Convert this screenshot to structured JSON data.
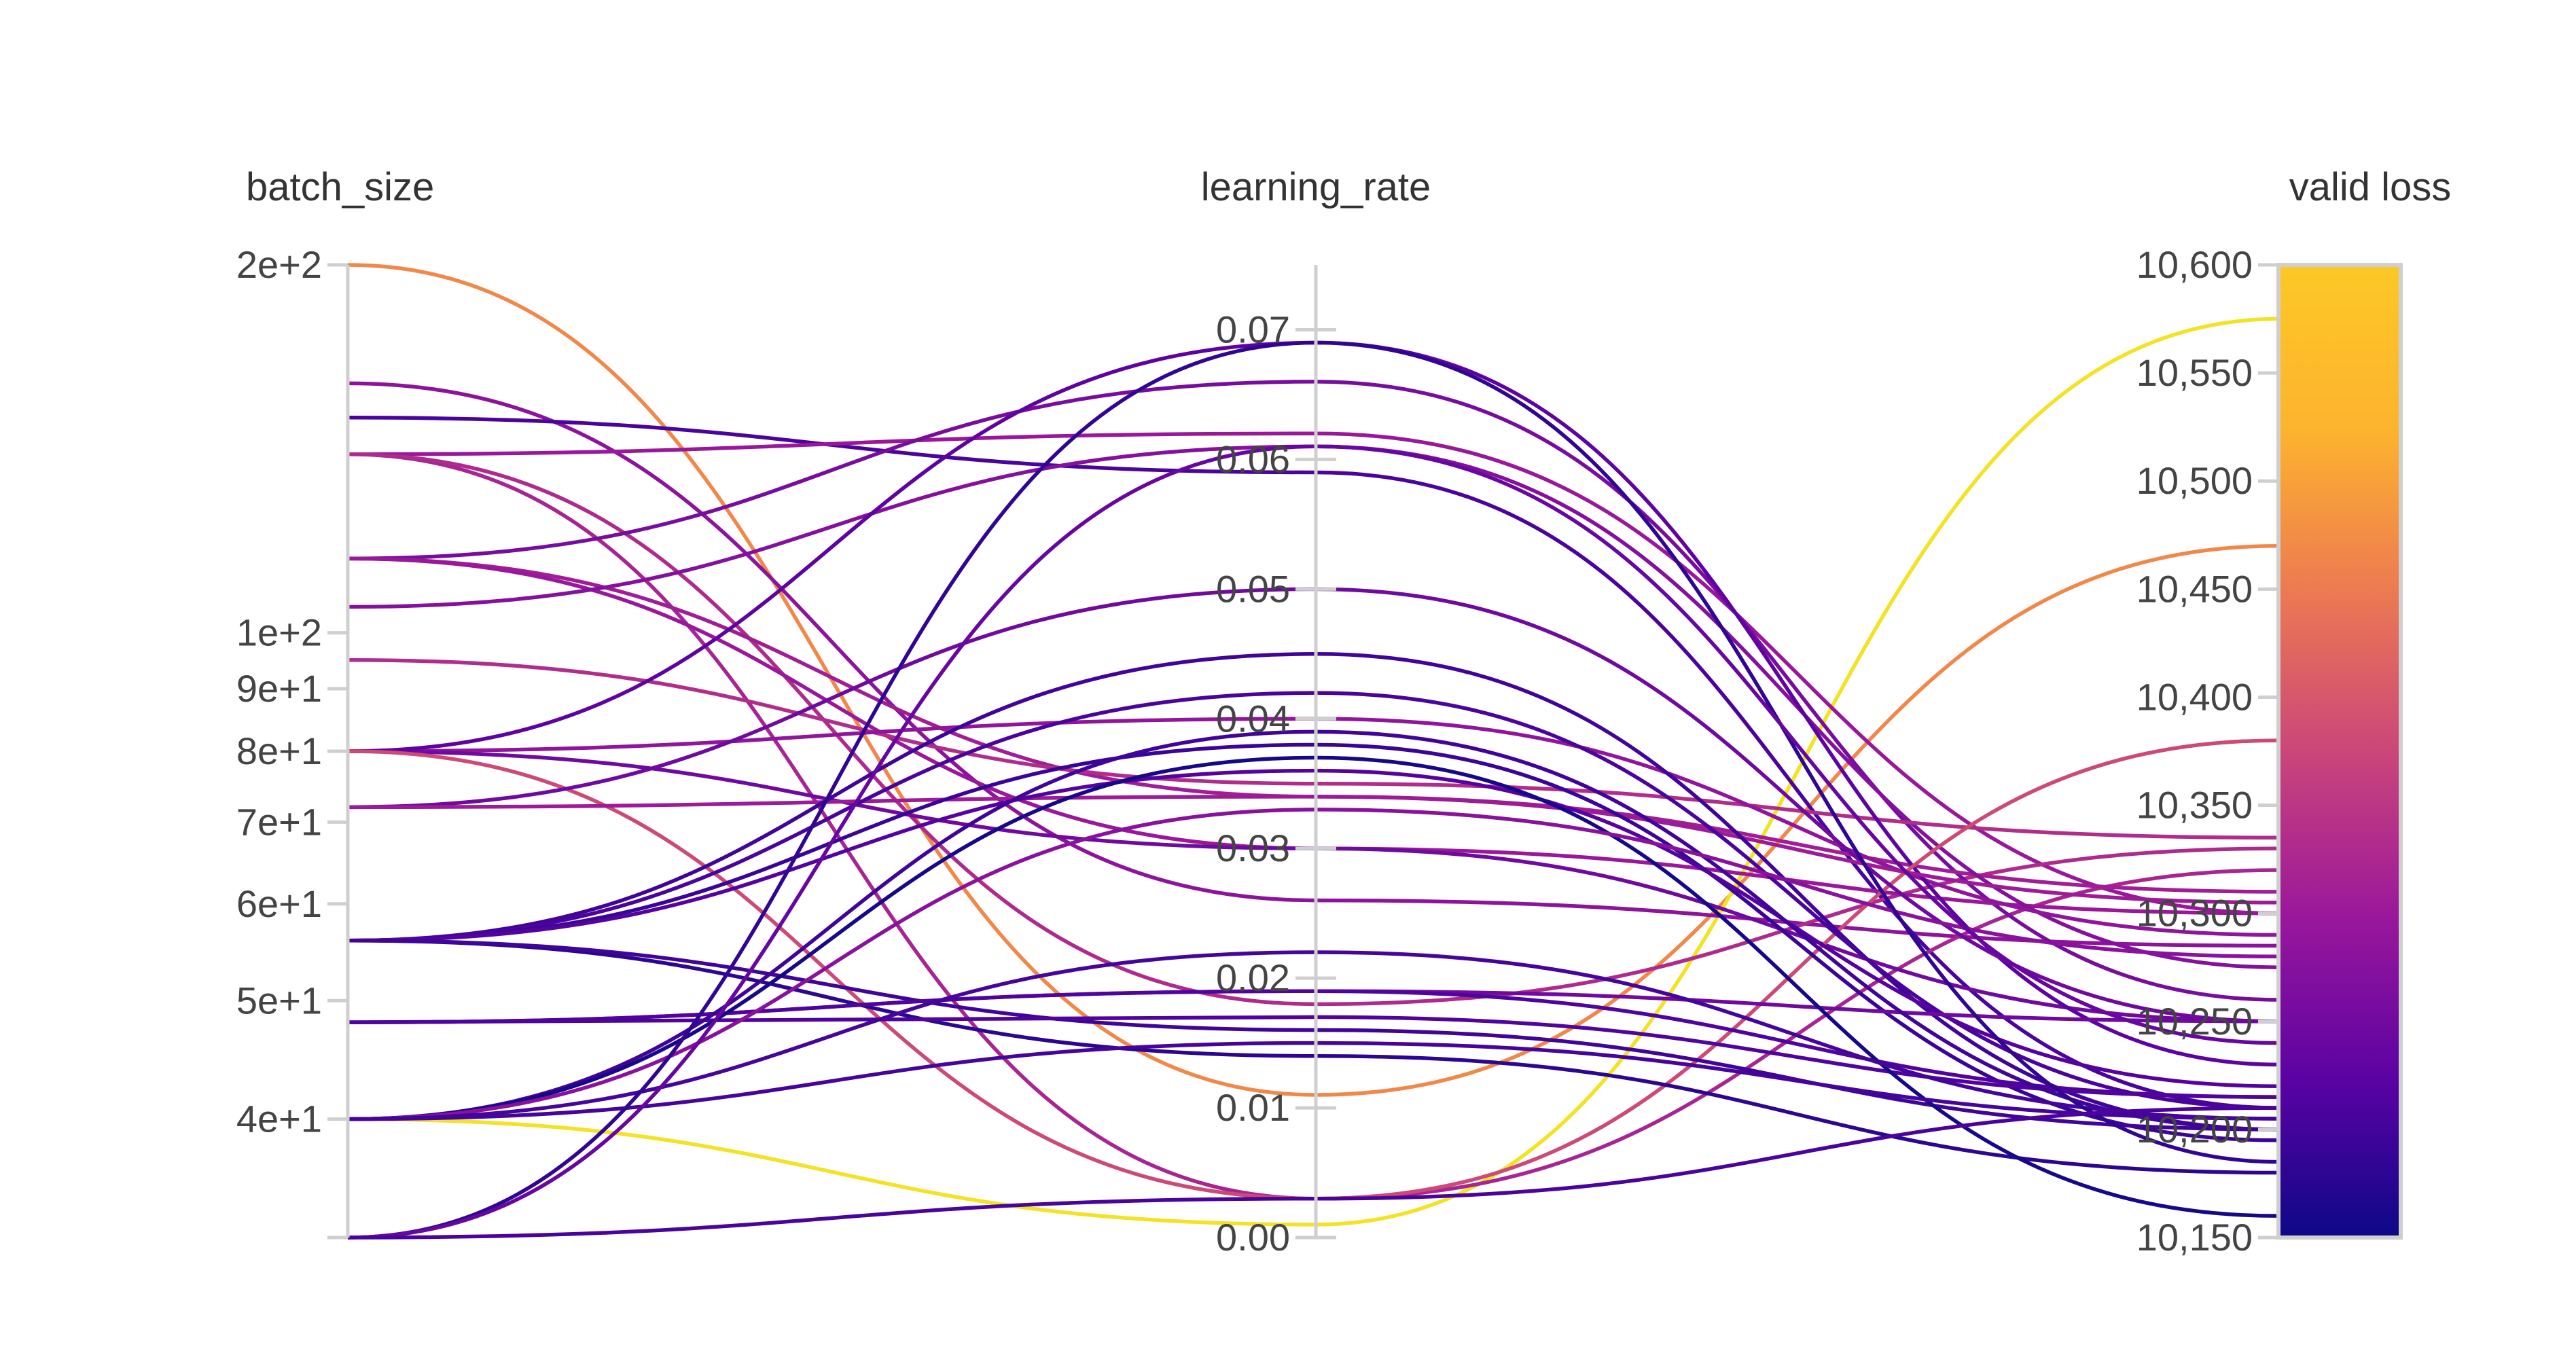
{
  "chart_data": {
    "type": "parallel_coordinates",
    "axes": [
      {
        "name": "batch_size",
        "scale": "log",
        "ticks": [
          {
            "value": 200,
            "label": "2e+2"
          },
          {
            "value": 100,
            "label": "1e+2"
          },
          {
            "value": 90,
            "label": "9e+1"
          },
          {
            "value": 80,
            "label": "8e+1"
          },
          {
            "value": 70,
            "label": "7e+1"
          },
          {
            "value": 60,
            "label": "6e+1"
          },
          {
            "value": 50,
            "label": "5e+1"
          },
          {
            "value": 40,
            "label": "4e+1"
          },
          {
            "value": 32,
            "label": ""
          }
        ],
        "range": [
          32,
          200
        ]
      },
      {
        "name": "learning_rate",
        "scale": "linear",
        "ticks": [
          {
            "value": 0.07,
            "label": "0.07"
          },
          {
            "value": 0.06,
            "label": "0.06"
          },
          {
            "value": 0.05,
            "label": "0.05"
          },
          {
            "value": 0.04,
            "label": "0.04"
          },
          {
            "value": 0.03,
            "label": "0.03"
          },
          {
            "value": 0.02,
            "label": "0.02"
          },
          {
            "value": 0.01,
            "label": "0.01"
          },
          {
            "value": 0.0,
            "label": "0.00"
          }
        ],
        "range": [
          0.0,
          0.075
        ]
      },
      {
        "name": "valid loss",
        "scale": "linear",
        "ticks": [
          {
            "value": 10600,
            "label": "10,600"
          },
          {
            "value": 10550,
            "label": "10,550"
          },
          {
            "value": 10500,
            "label": "10,500"
          },
          {
            "value": 10450,
            "label": "10,450"
          },
          {
            "value": 10400,
            "label": "10,400"
          },
          {
            "value": 10350,
            "label": "10,350"
          },
          {
            "value": 10300,
            "label": "10,300"
          },
          {
            "value": 10250,
            "label": "10,250"
          },
          {
            "value": 10200,
            "label": "10,200"
          },
          {
            "value": 10150,
            "label": "10,150"
          }
        ],
        "range": [
          10150,
          10600
        ]
      }
    ],
    "colorbar": {
      "metric": "valid loss",
      "range": [
        10150,
        10600
      ],
      "colors": [
        "#0d0887",
        "#5a02a3",
        "#9a179b",
        "#cb4679",
        "#ec7853",
        "#fdb32e",
        "#f0f921"
      ]
    },
    "series": [
      {
        "values": [
          200,
          0.011,
          10470
        ]
      },
      {
        "values": [
          40,
          0.001,
          10575
        ]
      },
      {
        "values": [
          160,
          0.026,
          10285
        ]
      },
      {
        "values": [
          150,
          0.059,
          10210
        ]
      },
      {
        "values": [
          140,
          0.062,
          10300
        ]
      },
      {
        "values": [
          140,
          0.003,
          10320
        ]
      },
      {
        "values": [
          140,
          0.018,
          10330
        ]
      },
      {
        "values": [
          115,
          0.066,
          10260
        ]
      },
      {
        "values": [
          115,
          0.034,
          10310
        ]
      },
      {
        "values": [
          115,
          0.03,
          10300
        ]
      },
      {
        "values": [
          105,
          0.061,
          10275
        ]
      },
      {
        "values": [
          95,
          0.035,
          10335
        ]
      },
      {
        "values": [
          80,
          0.04,
          10290
        ]
      },
      {
        "values": [
          80,
          0.03,
          10250
        ]
      },
      {
        "values": [
          80,
          0.069,
          10230
        ]
      },
      {
        "values": [
          80,
          0.003,
          10380
        ]
      },
      {
        "values": [
          72,
          0.05,
          10250
        ]
      },
      {
        "values": [
          72,
          0.034,
          10305
        ]
      },
      {
        "values": [
          56,
          0.045,
          10200
        ]
      },
      {
        "values": [
          56,
          0.042,
          10210
        ]
      },
      {
        "values": [
          56,
          0.038,
          10195
        ]
      },
      {
        "values": [
          56,
          0.036,
          10220
        ]
      },
      {
        "values": [
          56,
          0.014,
          10180
        ]
      },
      {
        "values": [
          56,
          0.016,
          10200
        ]
      },
      {
        "values": [
          48,
          0.019,
          10250
        ]
      },
      {
        "values": [
          48,
          0.019,
          10215
        ]
      },
      {
        "values": [
          48,
          0.017,
          10215
        ]
      },
      {
        "values": [
          40,
          0.039,
          10200
        ]
      },
      {
        "values": [
          40,
          0.037,
          10160
        ]
      },
      {
        "values": [
          40,
          0.033,
          10280
        ]
      },
      {
        "values": [
          40,
          0.022,
          10205
        ]
      },
      {
        "values": [
          40,
          0.015,
          10205
        ]
      },
      {
        "values": [
          32,
          0.069,
          10185
        ]
      },
      {
        "values": [
          32,
          0.061,
          10240
        ]
      },
      {
        "values": [
          32,
          0.003,
          10210
        ]
      }
    ]
  }
}
